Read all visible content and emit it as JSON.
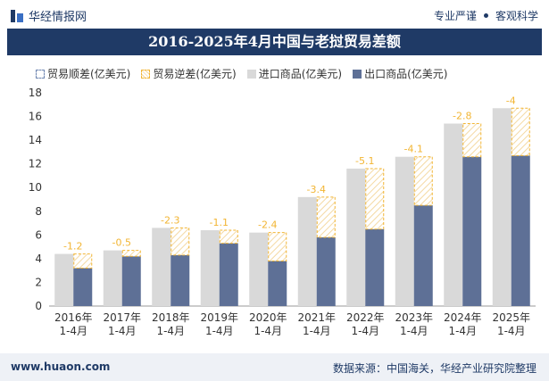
{
  "header": {
    "brand": "华经情报网",
    "tag1": "专业严谨",
    "tag2": "客观科学"
  },
  "footer": {
    "site": "www.huaon.com",
    "source": "数据来源：中国海关，华经产业研究院整理"
  },
  "colors": {
    "import": "#d9d9d9",
    "export": "#5e7096",
    "deficit": "#f2b533",
    "surplus": "#6d84b0",
    "title_bg": "#1f3a66"
  },
  "chart_data": {
    "type": "bar",
    "title": "2016-2025年4月中国与老挝贸易差额",
    "categories": [
      "2016年\n1-4月",
      "2017年\n1-4月",
      "2018年\n1-4月",
      "2019年\n1-4月",
      "2020年\n1-4月",
      "2021年\n1-4月",
      "2022年\n1-4月",
      "2023年\n1-4月",
      "2024年\n1-4月",
      "2025年\n1-4月"
    ],
    "series": [
      {
        "name": "贸易顺差(亿美元)",
        "values": [
          null,
          null,
          null,
          null,
          null,
          null,
          null,
          null,
          null,
          null
        ]
      },
      {
        "name": "贸易逆差(亿美元)",
        "values": [
          -1.2,
          -0.5,
          -2.3,
          -1.1,
          -2.4,
          -3.4,
          -5.1,
          -4.1,
          -2.8,
          -4
        ]
      },
      {
        "name": "进口商品(亿美元)",
        "values": [
          4.4,
          4.7,
          6.6,
          6.4,
          6.2,
          9.2,
          11.6,
          12.6,
          15.4,
          16.7
        ]
      },
      {
        "name": "出口商品(亿美元)",
        "values": [
          3.2,
          4.2,
          4.3,
          5.3,
          3.8,
          5.8,
          6.5,
          8.5,
          12.6,
          12.7
        ]
      }
    ],
    "ylim": [
      0,
      18
    ],
    "yticks": [
      "0",
      "2",
      "4",
      "6",
      "8",
      "10",
      "12",
      "14",
      "16",
      "18"
    ],
    "grid": false,
    "legend": "top-left"
  }
}
